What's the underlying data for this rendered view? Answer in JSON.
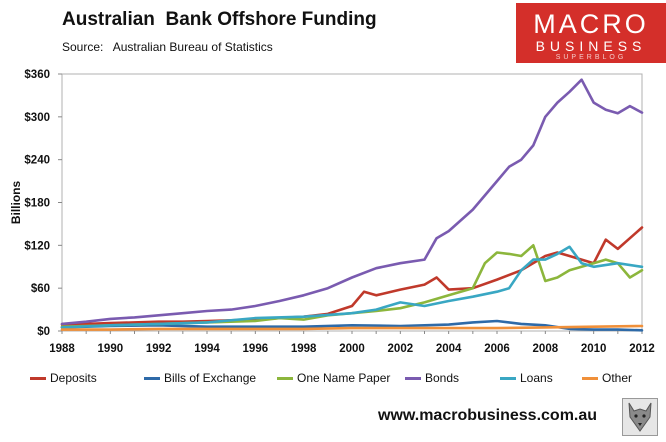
{
  "header": {
    "title": "Australian  Bank Offshore Funding",
    "source": "Source:   Australian Bureau of Statistics"
  },
  "logo": {
    "line1": "MACRO",
    "line2": "BUSINESS",
    "line3": "SUPERBLOG"
  },
  "footer": {
    "website": "www.macrobusiness.com.au"
  },
  "colors": {
    "deposits": "#c0392b",
    "bills": "#2e6aa8",
    "onename": "#8cb63c",
    "bonds": "#7a5bb0",
    "loans": "#39a7c3",
    "other": "#f0903a"
  },
  "chart_data": {
    "type": "line",
    "title": "Australian  Bank Offshore Funding",
    "xlabel": "",
    "ylabel": "Billions",
    "xlim": [
      1988,
      2012
    ],
    "ylim": [
      0,
      360
    ],
    "y_ticks": [
      0,
      60,
      120,
      180,
      240,
      300,
      360
    ],
    "y_tick_labels": [
      "$0",
      "$60",
      "$120",
      "$180",
      "$240",
      "$300",
      "$360"
    ],
    "x_ticks": [
      1988,
      1990,
      1992,
      1994,
      1996,
      1998,
      2000,
      2002,
      2004,
      2006,
      2008,
      2010,
      2012
    ],
    "x_tick_labels": [
      "1988",
      "1990",
      "1992",
      "1994",
      "1996",
      "1998",
      "2000",
      "2002",
      "2004",
      "2006",
      "2008",
      "2010",
      "2012"
    ],
    "grid": false,
    "legend_position": "bottom",
    "series": [
      {
        "name": "Deposits",
        "color_key": "deposits",
        "x": [
          1988,
          1989,
          1990,
          1991,
          1992,
          1993,
          1994,
          1995,
          1996,
          1997,
          1998,
          1999,
          2000,
          2000.5,
          2001,
          2002,
          2003,
          2003.5,
          2004,
          2005,
          2006,
          2007,
          2008,
          2008.5,
          2009,
          2010,
          2010.5,
          2011,
          2011.5,
          2012
        ],
        "y": [
          9,
          10,
          11,
          12,
          13,
          13,
          14,
          15,
          16,
          18,
          20,
          24,
          35,
          55,
          50,
          58,
          65,
          75,
          58,
          60,
          72,
          85,
          105,
          110,
          105,
          95,
          128,
          115,
          130,
          145
        ]
      },
      {
        "name": "Bills of Exchange",
        "color_key": "bills",
        "x": [
          1988,
          1990,
          1992,
          1994,
          1996,
          1998,
          2000,
          2002,
          2004,
          2005,
          2006,
          2007,
          2008,
          2009,
          2010,
          2011,
          2012
        ],
        "y": [
          5,
          7,
          8,
          6,
          6,
          6,
          8,
          7,
          9,
          12,
          14,
          10,
          8,
          3,
          2,
          2,
          1
        ]
      },
      {
        "name": "One Name Paper",
        "color_key": "onename",
        "x": [
          1988,
          1990,
          1992,
          1994,
          1996,
          1997,
          1998,
          1999,
          2000,
          2001,
          2002,
          2003,
          2004,
          2005,
          2005.5,
          2006,
          2006.5,
          2007,
          2007.5,
          2008,
          2008.5,
          2009,
          2010,
          2010.5,
          2011,
          2011.5,
          2012
        ],
        "y": [
          6,
          8,
          10,
          12,
          14,
          18,
          16,
          22,
          25,
          28,
          32,
          40,
          50,
          60,
          95,
          110,
          108,
          105,
          120,
          70,
          75,
          85,
          95,
          100,
          95,
          75,
          85
        ]
      },
      {
        "name": "Bonds",
        "color_key": "bonds",
        "x": [
          1988,
          1989,
          1990,
          1991,
          1992,
          1993,
          1994,
          1995,
          1996,
          1997,
          1998,
          1999,
          2000,
          2001,
          2002,
          2003,
          2003.5,
          2004,
          2005,
          2006,
          2006.5,
          2007,
          2007.5,
          2008,
          2008.5,
          2009,
          2009.5,
          2010,
          2010.5,
          2011,
          2011.5,
          2012
        ],
        "y": [
          10,
          13,
          17,
          19,
          22,
          25,
          28,
          30,
          35,
          42,
          50,
          60,
          75,
          88,
          95,
          100,
          130,
          140,
          170,
          210,
          230,
          240,
          260,
          300,
          320,
          335,
          352,
          320,
          310,
          305,
          315,
          306
        ]
      },
      {
        "name": "Loans",
        "color_key": "loans",
        "x": [
          1988,
          1990,
          1992,
          1994,
          1996,
          1998,
          2000,
          2001,
          2002,
          2003,
          2004,
          2005,
          2006,
          2006.5,
          2007,
          2007.5,
          2008,
          2008.5,
          2009,
          2009.5,
          2010,
          2011,
          2012
        ],
        "y": [
          5,
          8,
          10,
          12,
          18,
          20,
          25,
          30,
          40,
          35,
          42,
          48,
          55,
          60,
          85,
          100,
          100,
          108,
          118,
          95,
          90,
          95,
          90
        ]
      },
      {
        "name": "Other",
        "color_key": "other",
        "x": [
          1988,
          1990,
          1992,
          1994,
          1996,
          1998,
          2000,
          2002,
          2004,
          2006,
          2008,
          2010,
          2012
        ],
        "y": [
          2,
          2,
          3,
          3,
          3,
          3,
          4,
          4,
          4,
          4,
          5,
          6,
          7
        ]
      }
    ]
  }
}
